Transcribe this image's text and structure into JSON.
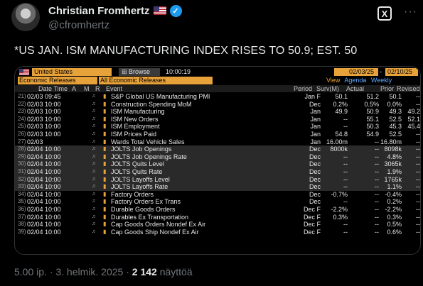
{
  "author": {
    "name": "Christian Fromhertz",
    "handle": "@cfromhertz",
    "verified_symbol": "✓"
  },
  "tweet": {
    "text": "*US JAN. ISM MANUFACTURING INDEX RISES TO 50.9; EST. 50",
    "meta_time": "5.00 ip. · 3. helmik. 2025 · ",
    "views": "2 142",
    "views_label": " näyttöä"
  },
  "toolbar": {
    "grok_label": "X"
  },
  "terminal": {
    "country": "United States",
    "browse_label": "Browse",
    "time": "10:00:19",
    "date_from": "02/03/25",
    "date_to": "02/10/25",
    "category": "Economic Releases",
    "filter": "All Economic Releases",
    "view_label": "View",
    "view_agenda": "Agenda",
    "view_weekly": "Weekly",
    "headers": {
      "datetime": "Date Time",
      "a": "A",
      "m": "M",
      "r": "R",
      "event": "Event",
      "period": "Period",
      "surv": "Surv(M)",
      "actual": "Actual",
      "prior": "Prior",
      "revised": "Revised"
    },
    "rows": [
      {
        "num": "21)",
        "dt": "02/03 09:45",
        "event": "S&P Global US Manufacturing PMI",
        "period": "Jan F",
        "surv": "50.1",
        "actual": "51.2",
        "prior": "50.1",
        "revised": "--",
        "gray": false
      },
      {
        "num": "22)",
        "dt": "02/03 10:00",
        "event": "Construction Spending MoM",
        "period": "Dec",
        "surv": "0.2%",
        "actual": "0.5%",
        "prior": "0.0%",
        "revised": "--",
        "gray": false
      },
      {
        "num": "23)",
        "dt": "02/03 10:00",
        "event": "ISM Manufacturing",
        "period": "Jan",
        "surv": "49.9",
        "actual": "50.9",
        "prior": "49.3",
        "revised": "49.2",
        "gray": false
      },
      {
        "num": "24)",
        "dt": "02/03 10:00",
        "event": "ISM New Orders",
        "period": "Jan",
        "surv": "--",
        "actual": "55.1",
        "prior": "52.5",
        "revised": "52.1",
        "gray": false
      },
      {
        "num": "25)",
        "dt": "02/03 10:00",
        "event": "ISM Employment",
        "period": "Jan",
        "surv": "--",
        "actual": "50.3",
        "prior": "45.3",
        "revised": "45.4",
        "gray": false
      },
      {
        "num": "26)",
        "dt": "02/03 10:00",
        "event": "ISM Prices Paid",
        "period": "Jan",
        "surv": "54.8",
        "actual": "54.9",
        "prior": "52.5",
        "revised": "--",
        "gray": false
      },
      {
        "num": "27)",
        "dt": "02/03",
        "event": "Wards Total Vehicle Sales",
        "period": "Jan",
        "surv": "16.00m",
        "actual": "--",
        "prior": "16.80m",
        "revised": "--",
        "gray": false
      },
      {
        "num": "28)",
        "dt": "02/04 10:00",
        "event": "JOLTS Job Openings",
        "period": "Dec",
        "surv": "8000k",
        "actual": "--",
        "prior": "8098k",
        "revised": "--",
        "gray": true
      },
      {
        "num": "29)",
        "dt": "02/04 10:00",
        "event": "JOLTS Job Openings Rate",
        "period": "Dec",
        "surv": "--",
        "actual": "--",
        "prior": "4.8%",
        "revised": "--",
        "gray": true
      },
      {
        "num": "30)",
        "dt": "02/04 10:00",
        "event": "JOLTS Quits Level",
        "period": "Dec",
        "surv": "--",
        "actual": "--",
        "prior": "3065k",
        "revised": "--",
        "gray": true
      },
      {
        "num": "31)",
        "dt": "02/04 10:00",
        "event": "JOLTS Quits Rate",
        "period": "Dec",
        "surv": "--",
        "actual": "--",
        "prior": "1.9%",
        "revised": "--",
        "gray": true
      },
      {
        "num": "32)",
        "dt": "02/04 10:00",
        "event": "JOLTS Layoffs Level",
        "period": "Dec",
        "surv": "--",
        "actual": "--",
        "prior": "1765k",
        "revised": "--",
        "gray": true
      },
      {
        "num": "33)",
        "dt": "02/04 10:00",
        "event": "JOLTS Layoffs Rate",
        "period": "Dec",
        "surv": "--",
        "actual": "--",
        "prior": "1.1%",
        "revised": "--",
        "gray": true
      },
      {
        "num": "34)",
        "dt": "02/04 10:00",
        "event": "Factory Orders",
        "period": "Dec",
        "surv": "-0.7%",
        "actual": "--",
        "prior": "-0.4%",
        "revised": "--",
        "gray": false
      },
      {
        "num": "35)",
        "dt": "02/04 10:00",
        "event": "Factory Orders Ex Trans",
        "period": "Dec",
        "surv": "--",
        "actual": "--",
        "prior": "0.2%",
        "revised": "--",
        "gray": false
      },
      {
        "num": "36)",
        "dt": "02/04 10:00",
        "event": "Durable Goods Orders",
        "period": "Dec F",
        "surv": "-2.2%",
        "actual": "--",
        "prior": "-2.2%",
        "revised": "--",
        "gray": false
      },
      {
        "num": "37)",
        "dt": "02/04 10:00",
        "event": "Durables Ex Transportation",
        "period": "Dec F",
        "surv": "0.3%",
        "actual": "--",
        "prior": "0.3%",
        "revised": "--",
        "gray": false
      },
      {
        "num": "38)",
        "dt": "02/04 10:00",
        "event": "Cap Goods Orders Nondef Ex Air",
        "period": "Dec F",
        "surv": "--",
        "actual": "--",
        "prior": "0.5%",
        "revised": "--",
        "gray": false
      },
      {
        "num": "39)",
        "dt": "02/04 10:00",
        "event": "Cap Goods Ship Nondef Ex Air",
        "period": "Dec F",
        "surv": "--",
        "actual": "--",
        "prior": "0.6%",
        "revised": "--",
        "gray": false
      }
    ]
  },
  "colors": {
    "accent_orange": "#e8a23a",
    "verified_blue": "#1d9bf0",
    "link_blue": "#5da9ff"
  }
}
